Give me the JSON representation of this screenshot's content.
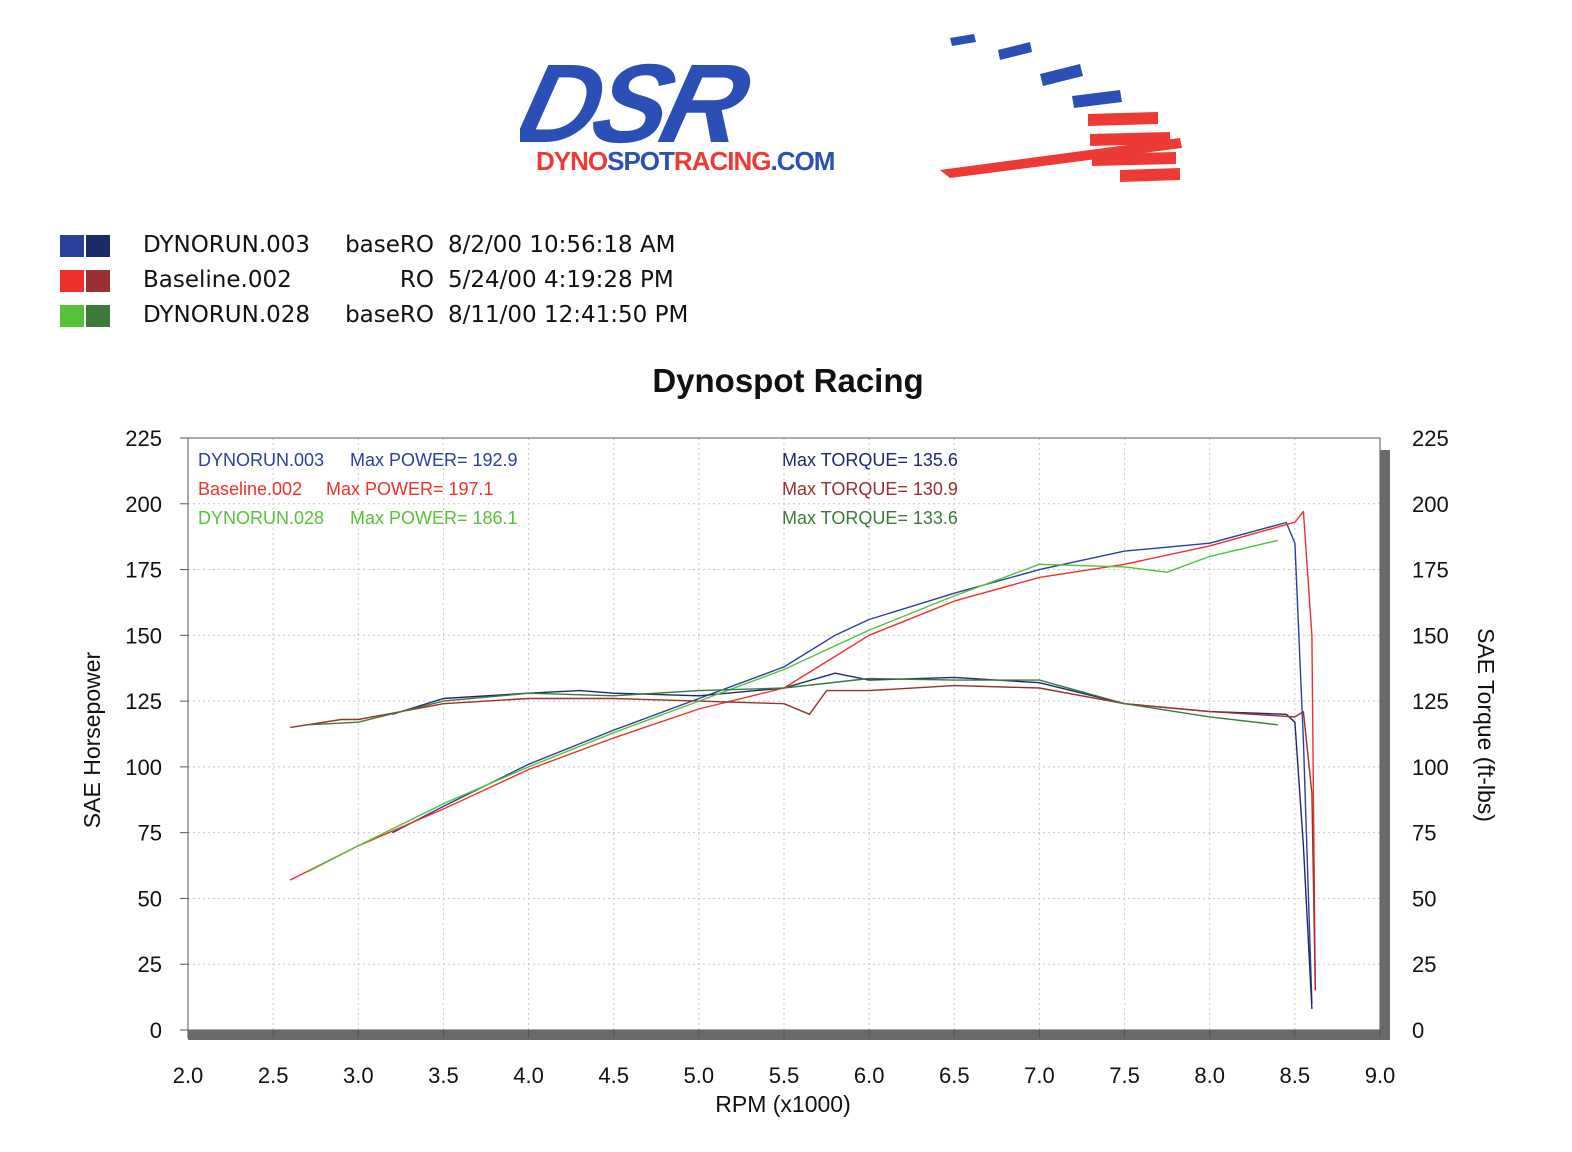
{
  "logo": {
    "wordmark": "DSR",
    "subtitle_a": "DYNO",
    "subtitle_b": "SPOT",
    "subtitle_c": "RACING",
    "subtitle_d": ".COM"
  },
  "runs": [
    {
      "file": "DYNORUN.003",
      "tag": "baseRO",
      "date": "8/2/00 10:56:18 AM",
      "color_power": "#2b3f9e",
      "color_torque": "#1c2a6b"
    },
    {
      "file": "Baseline.002",
      "tag": "RO",
      "date": "5/24/00 4:19:28 PM",
      "color_power": "#f0302a",
      "color_torque": "#9a3030"
    },
    {
      "file": "DYNORUN.028",
      "tag": "baseRO",
      "date": "8/11/00 12:41:50 PM",
      "color_power": "#55c23a",
      "color_torque": "#3d7a3a"
    }
  ],
  "annotations": [
    {
      "run": "DYNORUN.003",
      "power_label": "Max POWER= 192.9",
      "torque_label": "Max TORQUE= 135.6"
    },
    {
      "run": "Baseline.002",
      "power_label": "Max POWER= 197.1",
      "torque_label": "Max TORQUE= 130.9"
    },
    {
      "run": "DYNORUN.028",
      "power_label": "Max POWER= 186.1",
      "torque_label": "Max TORQUE= 133.6"
    }
  ],
  "chart_data": {
    "type": "line",
    "title": "Dynospot Racing",
    "xlabel": "RPM (x1000)",
    "ylabel": "SAE Horsepower",
    "y2label": "SAE Torque (ft-lbs)",
    "xlim": [
      2.0,
      9.0
    ],
    "ylim": [
      0,
      225
    ],
    "xticks": [
      "2.0",
      "2.5",
      "3.0",
      "3.5",
      "4.0",
      "4.5",
      "5.0",
      "5.5",
      "6.0",
      "6.5",
      "7.0",
      "7.5",
      "8.0",
      "8.5",
      "9.0"
    ],
    "yticks": [
      "0",
      "25",
      "50",
      "75",
      "100",
      "125",
      "150",
      "175",
      "200",
      "225"
    ],
    "grid": true,
    "series": [
      {
        "name": "DYNORUN.003",
        "kind": "power",
        "color": "#2b3f9e",
        "x": [
          3.2,
          3.5,
          4.0,
          4.5,
          5.0,
          5.5,
          5.8,
          6.0,
          6.5,
          7.0,
          7.5,
          8.0,
          8.45,
          8.5,
          8.55,
          8.6
        ],
        "y": [
          75,
          85,
          101,
          114,
          126,
          138,
          150,
          156,
          166,
          175,
          182,
          185,
          192.9,
          185,
          110,
          10
        ]
      },
      {
        "name": "DYNORUN.003",
        "kind": "torque",
        "color": "#1c2a6b",
        "x": [
          3.2,
          3.5,
          4.0,
          4.3,
          4.5,
          5.0,
          5.5,
          5.8,
          6.0,
          6.5,
          7.0,
          7.5,
          8.0,
          8.45,
          8.5,
          8.55,
          8.6
        ],
        "y": [
          120,
          126,
          128,
          129,
          128,
          127,
          130,
          135.6,
          133,
          134,
          132,
          124,
          121,
          120,
          117,
          70,
          8
        ]
      },
      {
        "name": "Baseline.002",
        "kind": "power",
        "color": "#f0302a",
        "x": [
          2.6,
          3.0,
          3.5,
          4.0,
          4.5,
          5.0,
          5.5,
          5.75,
          6.0,
          6.5,
          7.0,
          7.5,
          8.0,
          8.5,
          8.55,
          8.6,
          8.62
        ],
        "y": [
          57,
          70,
          84,
          99,
          111,
          122,
          130,
          140,
          150,
          163,
          172,
          177,
          184,
          193,
          197.1,
          150,
          15
        ]
      },
      {
        "name": "Baseline.002",
        "kind": "torque",
        "color": "#9a3030",
        "x": [
          2.6,
          2.9,
          3.0,
          3.5,
          4.0,
          4.5,
          5.0,
          5.5,
          5.65,
          5.75,
          6.0,
          6.5,
          7.0,
          7.5,
          8.0,
          8.5,
          8.55,
          8.6,
          8.62
        ],
        "y": [
          115,
          118,
          118,
          124,
          126,
          126,
          125,
          124,
          120,
          129,
          129,
          130.9,
          130,
          124,
          121,
          119,
          121,
          90,
          15
        ]
      },
      {
        "name": "DYNORUN.028",
        "kind": "power",
        "color": "#55c23a",
        "x": [
          2.7,
          3.0,
          3.5,
          4.0,
          4.5,
          5.0,
          5.5,
          6.0,
          6.5,
          7.0,
          7.5,
          7.75,
          8.0,
          8.4
        ],
        "y": [
          60,
          70,
          86,
          100,
          113,
          125,
          137,
          152,
          165,
          177,
          176,
          174,
          180,
          186.1
        ]
      },
      {
        "name": "DYNORUN.028",
        "kind": "torque",
        "color": "#3d7a3a",
        "x": [
          2.7,
          3.0,
          3.5,
          4.0,
          4.5,
          5.0,
          5.5,
          6.0,
          6.5,
          7.0,
          7.5,
          8.0,
          8.4
        ],
        "y": [
          116,
          117,
          125,
          128,
          127,
          129,
          130,
          133.6,
          133,
          133,
          124,
          119,
          116
        ]
      }
    ]
  }
}
